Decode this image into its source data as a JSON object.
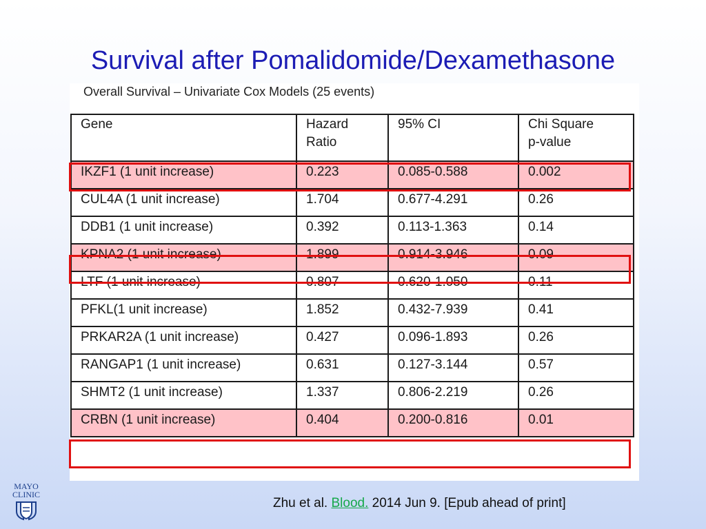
{
  "slide": {
    "title": "Survival after Pomalidomide/Dexamethasone"
  },
  "table": {
    "caption": "Overall Survival – Univariate Cox Models (25 events)",
    "headers": {
      "gene": "Gene",
      "hazard_ratio_line1": "Hazard",
      "hazard_ratio_line2": "Ratio",
      "ci": "95% CI",
      "chi_line1": "Chi Square",
      "chi_line2": "p-value"
    },
    "rows": [
      {
        "gene": "IKZF1 (1 unit increase)",
        "hr": "0.223",
        "ci": "0.085-0.588",
        "p": "0.002",
        "highlighted": true
      },
      {
        "gene": "CUL4A (1 unit increase)",
        "hr": "1.704",
        "ci": "0.677-4.291",
        "p": "0.26",
        "highlighted": false
      },
      {
        "gene": "DDB1 (1 unit increase)",
        "hr": "0.392",
        "ci": "0.113-1.363",
        "p": "0.14",
        "highlighted": false
      },
      {
        "gene": "KPNA2 (1 unit increase)",
        "hr": "1.899",
        "ci": "0.914-3.946",
        "p": "0.09",
        "highlighted": true
      },
      {
        "gene": "LTF (1 unit increase)",
        "hr": "0.807",
        "ci": "0.620-1.050",
        "p": "0.11",
        "highlighted": false
      },
      {
        "gene": "PFKL(1 unit increase)",
        "hr": "1.852",
        "ci": "0.432-7.939",
        "p": "0.41",
        "highlighted": false
      },
      {
        "gene": "PRKAR2A (1 unit increase)",
        "hr": "0.427",
        "ci": "0.096-1.893",
        "p": "0.26",
        "highlighted": false
      },
      {
        "gene": "RANGAP1 (1 unit increase)",
        "hr": "0.631",
        "ci": "0.127-3.144",
        "p": "0.57",
        "highlighted": false
      },
      {
        "gene": "SHMT2 (1 unit increase)",
        "hr": "1.337",
        "ci": "0.806-2.219",
        "p": "0.26",
        "highlighted": false
      },
      {
        "gene": "CRBN (1 unit increase)",
        "hr": "0.404",
        "ci": "0.200-0.816",
        "p": "0.01",
        "highlighted": true
      }
    ]
  },
  "logo": {
    "line1": "MAYO",
    "line2": "CLINIC",
    "icon": "mayo-shields-icon"
  },
  "citation": {
    "authors": "Zhu et al. ",
    "journal": "Blood.",
    "rest": " 2014 Jun 9. [Epub ahead of print]"
  },
  "colors": {
    "title": "#1c1cb4",
    "highlight_fill": "#ffc2c8",
    "highlight_border": "#e01010",
    "link": "#16a84a",
    "logo": "#1c3f8c"
  }
}
